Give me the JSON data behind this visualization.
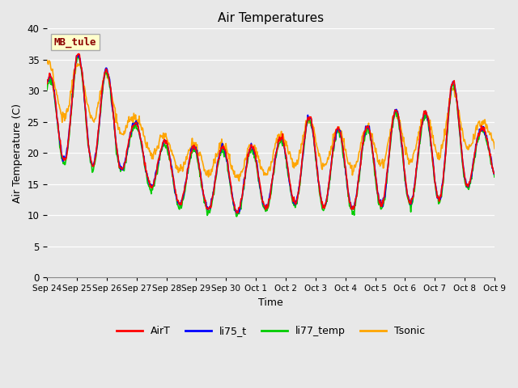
{
  "title": "Air Temperatures",
  "xlabel": "Time",
  "ylabel": "Air Temperature (C)",
  "ylim": [
    0,
    40
  ],
  "yticks": [
    0,
    5,
    10,
    15,
    20,
    25,
    30,
    35,
    40
  ],
  "annotation_text": "MB_tule",
  "annotation_color": "#8B0000",
  "annotation_bg": "#FFFFCC",
  "annotation_border": "#AAAAAA",
  "line_colors": {
    "AirT": "#FF0000",
    "li75_t": "#0000FF",
    "li77_temp": "#00CC00",
    "Tsonic": "#FFA500"
  },
  "bg_color": "#E8E8E8",
  "grid_color": "#FFFFFF",
  "xtick_labels": [
    "Sep 24",
    "Sep 25",
    "Sep 26",
    "Sep 27",
    "Sep 28",
    "Sep 29",
    "Sep 30",
    "Oct 1",
    "Oct 2",
    "Oct 3",
    "Oct 4",
    "Oct 5",
    "Oct 6",
    "Oct 7",
    "Oct 8",
    "Oct 9"
  ],
  "n_days": 15.5,
  "n_points": 744,
  "samples_per_day": 48
}
